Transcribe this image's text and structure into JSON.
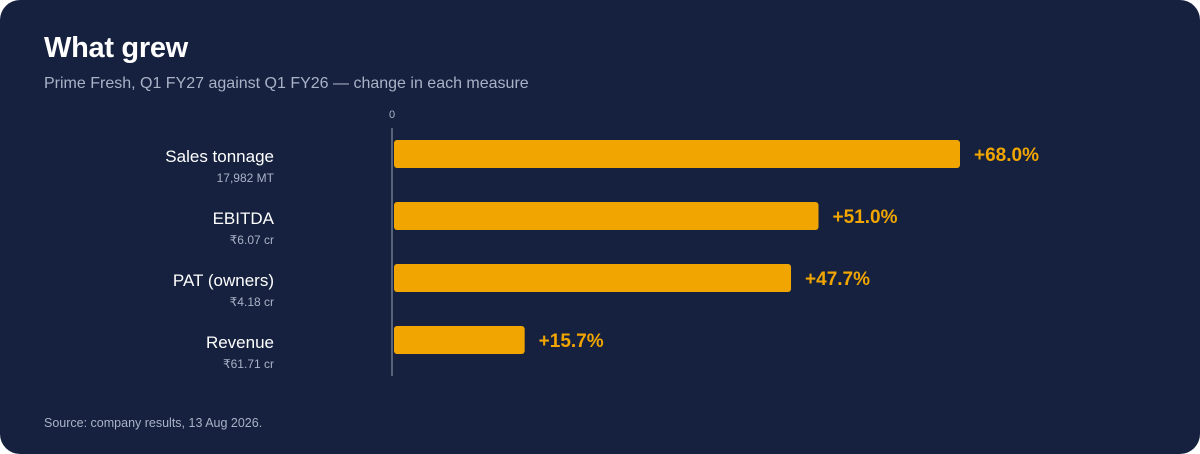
{
  "header": {
    "title": "What grew",
    "subtitle": "Prime Fresh, Q1 FY27 against Q1 FY26 — change in each measure"
  },
  "footer": {
    "source": "Source: company results, 13 Aug 2026."
  },
  "colors": {
    "background": "#15213e",
    "bar": "#f0a500",
    "axis": "#56617a",
    "muted_text": "#a9b3c7"
  },
  "chart_data": {
    "type": "bar",
    "orientation": "horizontal",
    "categories": [
      "Sales tonnage",
      "EBITDA",
      "PAT (owners)",
      "Revenue"
    ],
    "category_subtitles": [
      "17,982 MT",
      "₹6.07 cr",
      "₹4.18 cr",
      "₹61.71 cr"
    ],
    "values": [
      68.0,
      51.0,
      47.7,
      15.7
    ],
    "value_labels": [
      "+68.0%",
      "+51.0%",
      "+47.7%",
      "+15.7%"
    ],
    "axis_tick_label": "0",
    "xlim": [
      0,
      68.0
    ],
    "grid": false,
    "legend": "none"
  }
}
